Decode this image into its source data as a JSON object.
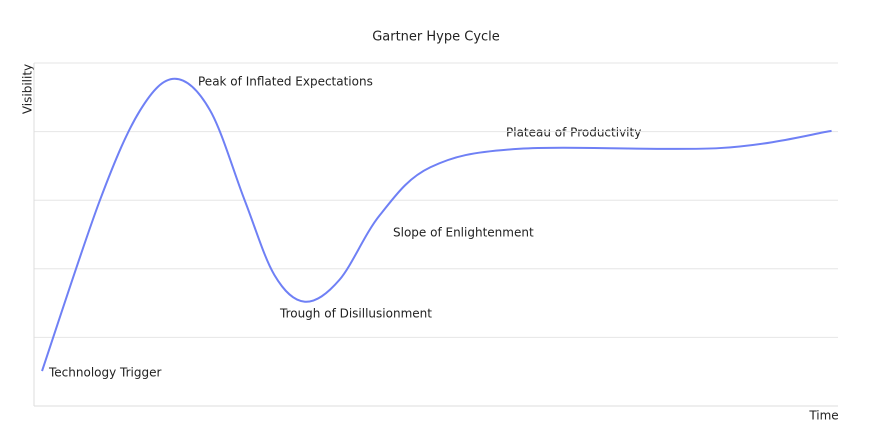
{
  "chart_data": {
    "type": "line",
    "title": "Gartner Hype Cycle",
    "xlabel": "Time",
    "ylabel": "Visibility",
    "x": [
      1,
      8.2,
      13.2,
      17.5,
      21.9,
      26.2,
      29.9,
      33.7,
      38.0,
      43.0,
      49.3,
      60.4,
      85.3,
      99.2
    ],
    "series": [
      {
        "color": "#6f80f5",
        "values": [
          0.51,
          3.0,
          4.31,
          4.77,
          4.31,
          3.0,
          1.91,
          1.52,
          1.84,
          2.78,
          3.48,
          3.75,
          3.76,
          4.01
        ]
      }
    ],
    "xlim": [
      0,
      100
    ],
    "ylim": [
      0,
      5
    ],
    "yticks": [
      0,
      1,
      2,
      3,
      4,
      5
    ],
    "grid": true,
    "annotations": [
      "Peak of Inflated Expectations",
      "Plateau of Productivity",
      "Slope of Enlightenment",
      "Trough of Disillusionment",
      "Technology Trigger"
    ]
  }
}
